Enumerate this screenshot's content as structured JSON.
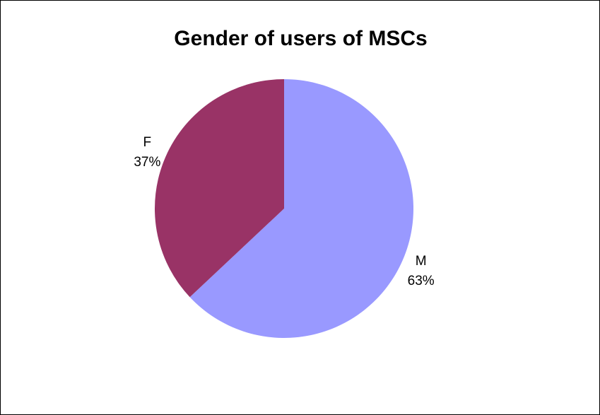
{
  "chart_data": {
    "type": "pie",
    "title": "Gender of users of MSCs",
    "slices": [
      {
        "label": "M",
        "percent_label": "63%",
        "value": 63,
        "color": "#9999FF"
      },
      {
        "label": "F",
        "percent_label": "37%",
        "value": 37,
        "color": "#993366"
      }
    ],
    "start": "12 o'clock",
    "direction": "clockwise",
    "legend": "none"
  }
}
